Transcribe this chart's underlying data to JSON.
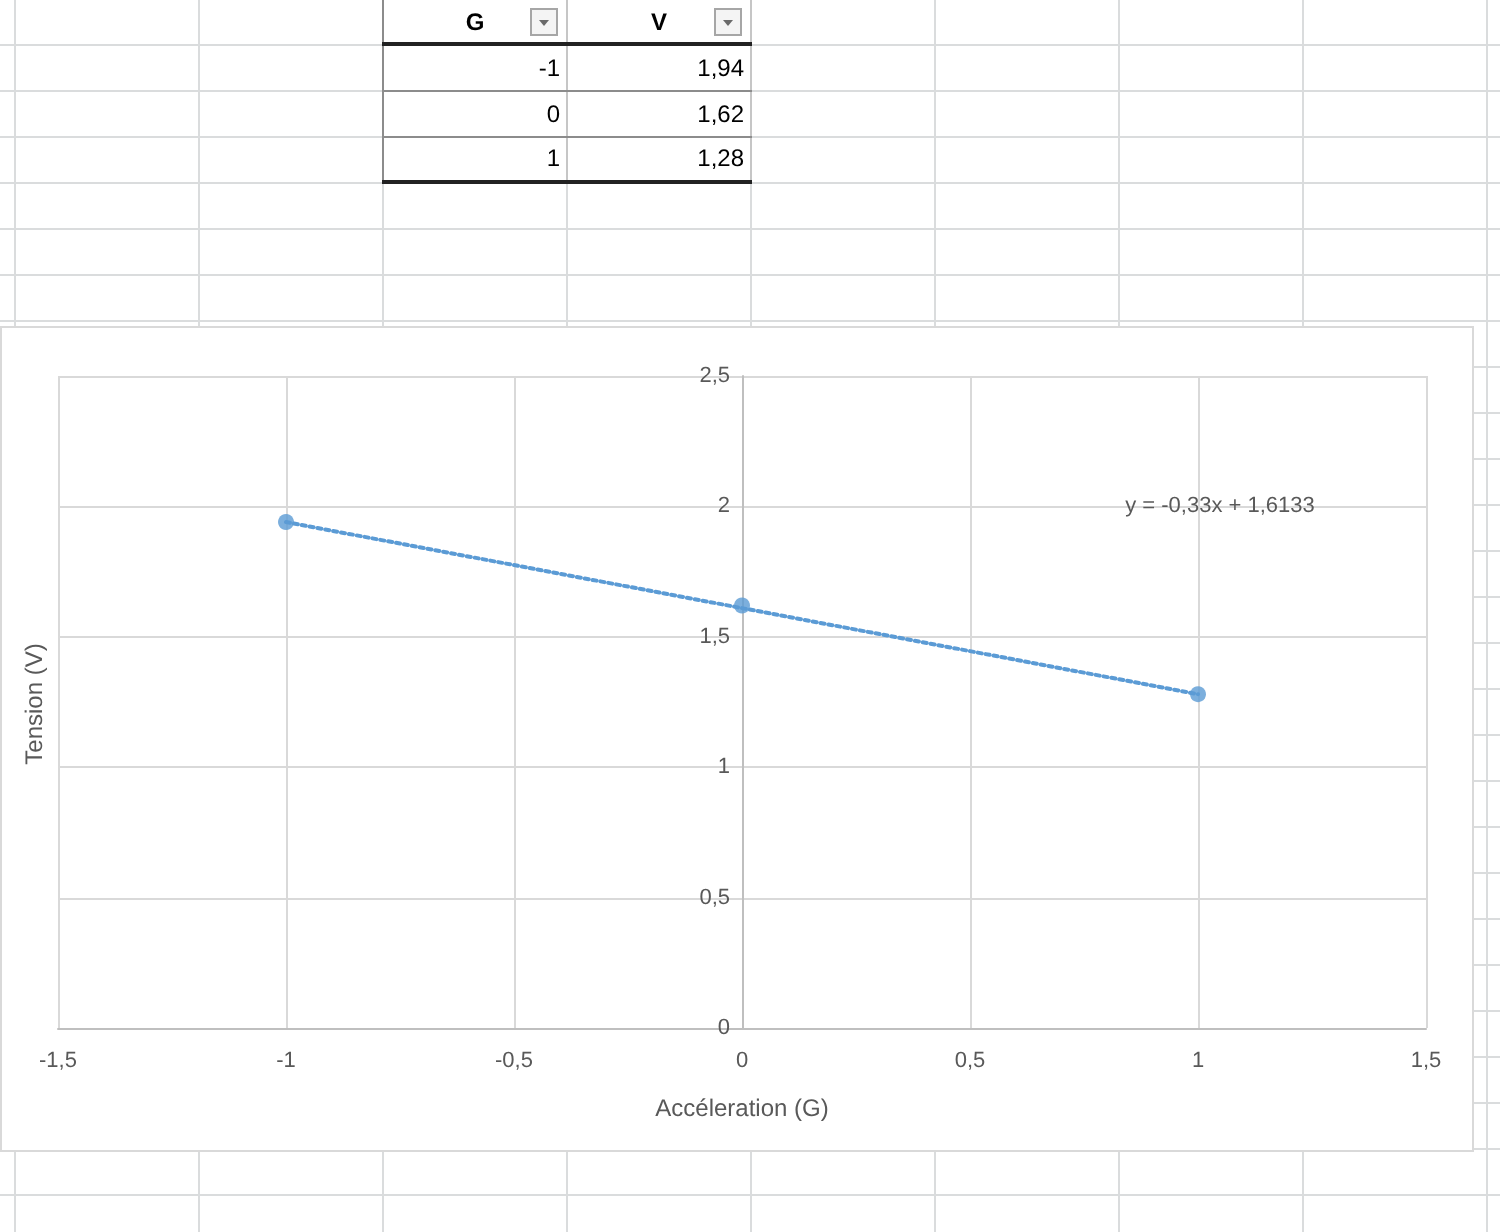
{
  "chart_data": [
    {
      "type": "other",
      "annotations": [
        "G",
        "V",
        "-1",
        "1,94",
        "0",
        "1,62",
        "1",
        "1,28"
      ]
    },
    {
      "type": "scatter",
      "xlabel": "Accéleration (G)",
      "ylabel": "Tension (V)",
      "annotations": [
        "y = -0,33x + 1,6133"
      ],
      "x": [
        -1,
        0,
        1
      ],
      "series": [
        {
          "color": "#5b9bd5",
          "marker": "circle",
          "values": [
            1.94,
            1.62,
            1.28
          ]
        },
        {
          "type": "line",
          "color": "#5b9bd5",
          "marker": "none",
          "line_style": "dotted",
          "x": [
            -1,
            1
          ],
          "values": [
            1.94,
            1.28
          ]
        }
      ],
      "xlim": [
        -1.5,
        1.5
      ],
      "xticks": [
        {
          "value": -1.5,
          "label": "-1,5"
        },
        -1,
        {
          "value": -0.5,
          "label": "-0,5"
        },
        0,
        {
          "value": 0.5,
          "label": "0,5"
        },
        1,
        {
          "value": 1.5,
          "label": "1,5"
        }
      ],
      "ylim": [
        0,
        2.5
      ],
      "yticks": [
        0,
        {
          "value": 0.5,
          "label": "0,5"
        },
        1,
        {
          "value": 1.5,
          "label": "1,5"
        },
        2,
        {
          "value": 2.5,
          "label": "2,5"
        }
      ],
      "grid": true
    }
  ]
}
